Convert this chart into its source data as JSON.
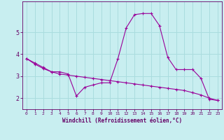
{
  "x": [
    0,
    1,
    2,
    3,
    4,
    5,
    6,
    7,
    8,
    9,
    10,
    11,
    12,
    13,
    14,
    15,
    16,
    17,
    18,
    19,
    20,
    21,
    22,
    23
  ],
  "line1": [
    3.8,
    3.6,
    3.4,
    3.2,
    3.2,
    3.1,
    2.1,
    2.5,
    2.6,
    2.7,
    2.7,
    3.8,
    5.2,
    5.8,
    5.85,
    5.85,
    5.3,
    3.85,
    3.3,
    3.3,
    3.3,
    2.9,
    1.95,
    1.9
  ],
  "line2": [
    3.8,
    3.55,
    3.35,
    3.2,
    3.1,
    3.05,
    3.0,
    2.95,
    2.9,
    2.85,
    2.8,
    2.75,
    2.7,
    2.65,
    2.6,
    2.55,
    2.5,
    2.45,
    2.4,
    2.35,
    2.25,
    2.15,
    2.0,
    1.9
  ],
  "line_color": "#990099",
  "bg_color": "#c8eef0",
  "grid_color": "#aadcde",
  "xlabel": "Windchill (Refroidissement éolien,°C)",
  "xlabel_color": "#660066",
  "xticks": [
    0,
    1,
    2,
    3,
    4,
    5,
    6,
    7,
    8,
    9,
    10,
    11,
    12,
    13,
    14,
    15,
    16,
    17,
    18,
    19,
    20,
    21,
    22,
    23
  ],
  "yticks": [
    2,
    3,
    4,
    5
  ],
  "ylim": [
    1.5,
    6.4
  ],
  "xlim": [
    -0.5,
    23.5
  ],
  "tick_color": "#660066",
  "marker": "+"
}
